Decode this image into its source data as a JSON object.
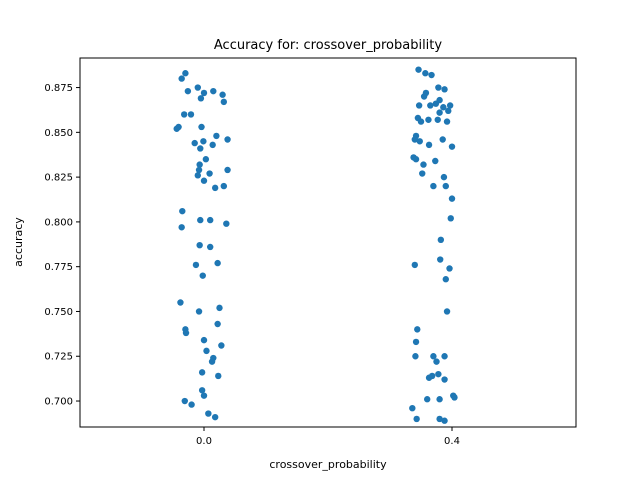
{
  "chart_data": {
    "type": "scatter",
    "title": "Accuracy for: crossover_probability",
    "xlabel": "crossover_probability",
    "ylabel": "accuracy",
    "categories": [
      "0.0",
      "0.4"
    ],
    "yticks": [
      "0.700",
      "0.725",
      "0.750",
      "0.775",
      "0.800",
      "0.825",
      "0.850",
      "0.875"
    ],
    "ylim": [
      0.6855,
      0.8915
    ],
    "grid": false,
    "legend": "none",
    "point_color": "#1f77b4",
    "jitter_range": 0.04,
    "series": [
      {
        "category": "0.0",
        "points": [
          [
            -0.03,
            0.883
          ],
          [
            -0.036,
            0.88
          ],
          [
            -0.01,
            0.875
          ],
          [
            0.015,
            0.873
          ],
          [
            0.03,
            0.871
          ],
          [
            0.0,
            0.872
          ],
          [
            -0.026,
            0.873
          ],
          [
            -0.005,
            0.869
          ],
          [
            0.032,
            0.867
          ],
          [
            -0.021,
            0.86
          ],
          [
            -0.032,
            0.86
          ],
          [
            -0.041,
            0.853
          ],
          [
            -0.044,
            0.852
          ],
          [
            -0.004,
            0.853
          ],
          [
            0.038,
            0.846
          ],
          [
            0.02,
            0.848
          ],
          [
            -0.015,
            0.844
          ],
          [
            -0.001,
            0.845
          ],
          [
            -0.006,
            0.841
          ],
          [
            0.014,
            0.843
          ],
          [
            0.003,
            0.835
          ],
          [
            -0.007,
            0.832
          ],
          [
            0.038,
            0.829
          ],
          [
            -0.01,
            0.826
          ],
          [
            -0.008,
            0.829
          ],
          [
            0.009,
            0.827
          ],
          [
            0.0,
            0.823
          ],
          [
            0.032,
            0.82
          ],
          [
            0.018,
            0.819
          ],
          [
            -0.035,
            0.806
          ],
          [
            -0.036,
            0.797
          ],
          [
            -0.006,
            0.801
          ],
          [
            0.01,
            0.801
          ],
          [
            0.036,
            0.799
          ],
          [
            -0.007,
            0.787
          ],
          [
            0.01,
            0.786
          ],
          [
            0.022,
            0.777
          ],
          [
            -0.013,
            0.776
          ],
          [
            -0.002,
            0.77
          ],
          [
            -0.038,
            0.755
          ],
          [
            -0.008,
            0.75
          ],
          [
            0.025,
            0.752
          ],
          [
            0.022,
            0.743
          ],
          [
            -0.03,
            0.74
          ],
          [
            -0.029,
            0.738
          ],
          [
            0.0,
            0.734
          ],
          [
            0.028,
            0.731
          ],
          [
            0.004,
            0.728
          ],
          [
            0.015,
            0.724
          ],
          [
            0.013,
            0.722
          ],
          [
            -0.003,
            0.716
          ],
          [
            0.023,
            0.714
          ],
          [
            -0.003,
            0.706
          ],
          [
            0.0,
            0.703
          ],
          [
            -0.031,
            0.7
          ],
          [
            -0.02,
            0.698
          ],
          [
            0.007,
            0.693
          ],
          [
            0.018,
            0.691
          ]
        ]
      },
      {
        "category": "0.4",
        "points": [
          [
            0.357,
            0.883
          ],
          [
            0.346,
            0.885
          ],
          [
            0.367,
            0.882
          ],
          [
            0.358,
            0.872
          ],
          [
            0.355,
            0.87
          ],
          [
            0.378,
            0.875
          ],
          [
            0.388,
            0.874
          ],
          [
            0.347,
            0.865
          ],
          [
            0.365,
            0.865
          ],
          [
            0.374,
            0.866
          ],
          [
            0.38,
            0.868
          ],
          [
            0.386,
            0.864
          ],
          [
            0.397,
            0.865
          ],
          [
            0.38,
            0.861
          ],
          [
            0.394,
            0.862
          ],
          [
            0.362,
            0.857
          ],
          [
            0.345,
            0.858
          ],
          [
            0.35,
            0.856
          ],
          [
            0.377,
            0.857
          ],
          [
            0.392,
            0.856
          ],
          [
            0.342,
            0.848
          ],
          [
            0.34,
            0.846
          ],
          [
            0.348,
            0.845
          ],
          [
            0.363,
            0.843
          ],
          [
            0.385,
            0.846
          ],
          [
            0.4,
            0.842
          ],
          [
            0.338,
            0.836
          ],
          [
            0.342,
            0.835
          ],
          [
            0.373,
            0.834
          ],
          [
            0.354,
            0.832
          ],
          [
            0.352,
            0.827
          ],
          [
            0.387,
            0.825
          ],
          [
            0.37,
            0.82
          ],
          [
            0.39,
            0.82
          ],
          [
            0.4,
            0.813
          ],
          [
            0.398,
            0.802
          ],
          [
            0.382,
            0.79
          ],
          [
            0.381,
            0.779
          ],
          [
            0.396,
            0.774
          ],
          [
            0.39,
            0.768
          ],
          [
            0.34,
            0.776
          ],
          [
            0.392,
            0.75
          ],
          [
            0.344,
            0.74
          ],
          [
            0.342,
            0.733
          ],
          [
            0.341,
            0.725
          ],
          [
            0.37,
            0.725
          ],
          [
            0.375,
            0.722
          ],
          [
            0.388,
            0.725
          ],
          [
            0.363,
            0.713
          ],
          [
            0.378,
            0.715
          ],
          [
            0.368,
            0.714
          ],
          [
            0.388,
            0.712
          ],
          [
            0.402,
            0.703
          ],
          [
            0.404,
            0.702
          ],
          [
            0.36,
            0.701
          ],
          [
            0.38,
            0.701
          ],
          [
            0.336,
            0.696
          ],
          [
            0.343,
            0.69
          ],
          [
            0.38,
            0.69
          ],
          [
            0.388,
            0.689
          ]
        ]
      }
    ]
  }
}
